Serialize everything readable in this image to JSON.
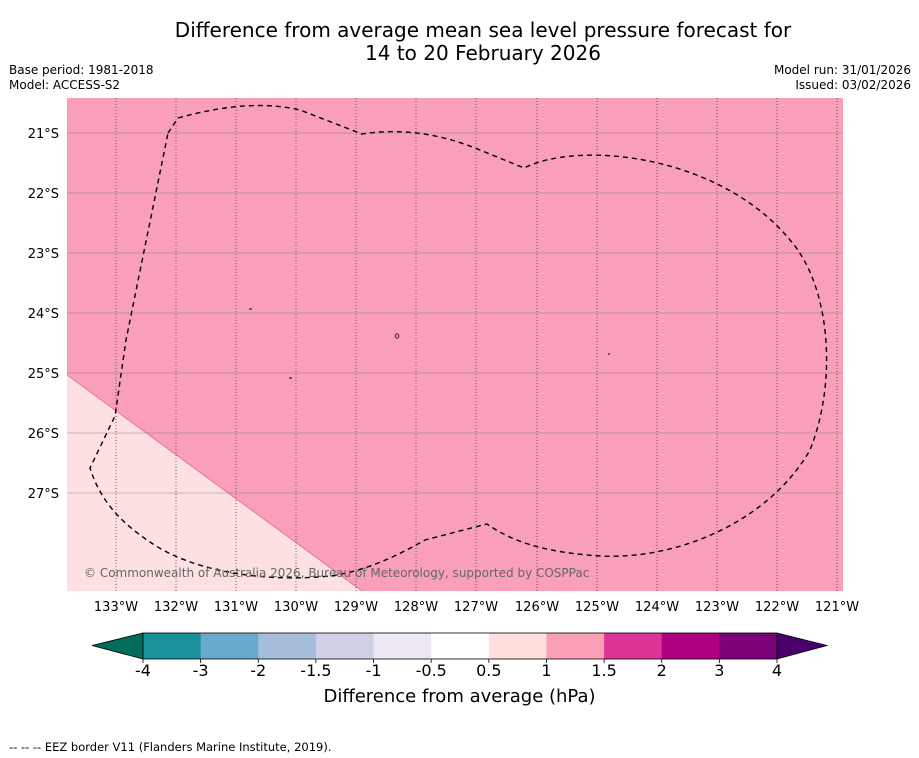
{
  "title": {
    "line1": "Difference from average mean sea level pressure forecast for",
    "line2": "14 to 20 February 2026"
  },
  "meta_left": {
    "base_period": "Base period: 1981-2018",
    "model": "Model: ACCESS-S2"
  },
  "meta_right": {
    "model_run": "Model run: 31/01/2026",
    "issued": "Issued: 03/02/2026"
  },
  "map": {
    "copyright": "© Commonwealth of Australia 2026, Bureau of Meteorology, supported by COSPPac",
    "lat_labels": [
      "21°S",
      "22°S",
      "23°S",
      "24°S",
      "25°S",
      "26°S",
      "27°S"
    ],
    "lon_labels": [
      "133°W",
      "132°W",
      "131°W",
      "130°W",
      "129°W",
      "128°W",
      "127°W",
      "126°W",
      "125°W",
      "124°W",
      "123°W",
      "122°W",
      "121°W"
    ],
    "colors": {
      "main_fill": "#f99fb8",
      "lower_fill": "#fde0e1",
      "boundary_line": "#e06c92"
    }
  },
  "colorbar": {
    "ticks": [
      "-4",
      "-3",
      "-2",
      "-1.5",
      "-1",
      "-0.5",
      "0.5",
      "1",
      "1.5",
      "2",
      "3",
      "4"
    ],
    "colors": [
      "#1a9099",
      "#67a9cf",
      "#a6bddb",
      "#d0d1e6",
      "#ece7f2",
      "#ffffff",
      "#fde0dd",
      "#fa9fb5",
      "#dd3497",
      "#ae017e",
      "#7a0177"
    ],
    "under_color": "#016c59",
    "over_color": "#49006a",
    "label": "Difference from average (hPa)"
  },
  "footer": {
    "eez_note": "--  --  -- EEZ border V11 (Flanders Marine Institute, 2019)."
  }
}
